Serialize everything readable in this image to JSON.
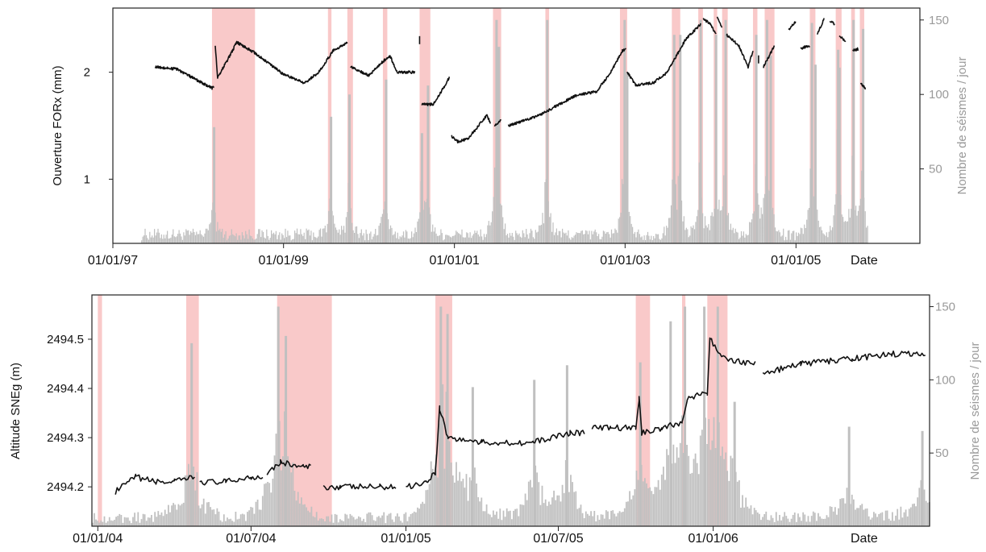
{
  "colors": {
    "event_band": "#f9c9c9",
    "bars": "#c0c0c0",
    "line": "#111111",
    "right_axis": "#9a9a9a"
  },
  "chart_data": [
    {
      "type": "line",
      "ylabel": "Ouverture FORx (mm)",
      "y2label": "Nombre de séismes / jour",
      "date_label": "Date",
      "x_tick_labels": [
        "01/01/97",
        "01/01/99",
        "01/01/01",
        "01/01/03",
        "01/01/05"
      ],
      "x_tick_values": [
        "1997-01-01",
        "1999-01-01",
        "2001-01-01",
        "2003-01-01",
        "2005-01-01"
      ],
      "xlim": [
        "1997-01-01",
        "2006-06-15"
      ],
      "y_ticks": [
        1,
        2
      ],
      "ylim": [
        0.4,
        2.6
      ],
      "y2_ticks": [
        50,
        100,
        150
      ],
      "y2lim": [
        0,
        158
      ],
      "event_bands": [
        [
          "1998-03-01",
          "1998-09-01"
        ],
        [
          "1999-07-10",
          "1999-07-25"
        ],
        [
          "1999-10-01",
          "1999-10-25"
        ],
        [
          "2000-03-01",
          "2000-03-20"
        ],
        [
          "2000-08-05",
          "2000-09-20"
        ],
        [
          "2001-06-15",
          "2001-07-20"
        ],
        [
          "2002-01-25",
          "2002-02-10"
        ],
        [
          "2002-12-10",
          "2003-01-10"
        ],
        [
          "2003-07-20",
          "2003-08-25"
        ],
        [
          "2003-11-10",
          "2003-11-30"
        ],
        [
          "2004-01-15",
          "2004-01-30"
        ],
        [
          "2004-02-20",
          "2004-03-15"
        ],
        [
          "2004-07-01",
          "2004-07-20"
        ],
        [
          "2004-08-20",
          "2004-10-01"
        ],
        [
          "2005-03-01",
          "2005-03-25"
        ],
        [
          "2005-06-20",
          "2005-07-15"
        ],
        [
          "2005-08-25",
          "2005-09-10"
        ],
        [
          "2005-10-01",
          "2005-10-20"
        ]
      ],
      "series": [
        {
          "kind": "line",
          "segments": [
            [
              [
                "1997-07-01",
                2.05
              ],
              [
                "1997-10-01",
                2.03
              ],
              [
                "1998-01-01",
                1.92
              ],
              [
                "1998-03-01",
                1.85
              ],
              [
                "1998-03-10",
                1.87
              ]
            ],
            [
              [
                "1998-03-15",
                2.25
              ],
              [
                "1998-03-25",
                1.95
              ],
              [
                "1998-05-15",
                2.15
              ],
              [
                "1998-06-15",
                2.28
              ],
              [
                "1998-09-01",
                2.18
              ],
              [
                "1999-01-01",
                1.98
              ],
              [
                "1999-04-01",
                1.9
              ],
              [
                "1999-06-01",
                2.0
              ],
              [
                "1999-08-01",
                2.2
              ],
              [
                "1999-10-01",
                2.28
              ]
            ],
            [
              [
                "1999-10-15",
                2.05
              ],
              [
                "2000-01-01",
                1.97
              ],
              [
                "2000-03-01",
                2.1
              ],
              [
                "2000-04-01",
                2.15
              ],
              [
                "2000-05-01",
                2.0
              ],
              [
                "2000-07-15",
                2.0
              ]
            ],
            [
              [
                "2000-08-05",
                2.3
              ]
            ],
            [
              [
                "2000-08-15",
                1.7
              ],
              [
                "2000-10-01",
                1.7
              ],
              [
                "2000-11-01",
                1.8
              ],
              [
                "2000-12-10",
                1.95
              ]
            ],
            [
              [
                "2000-12-20",
                1.4
              ],
              [
                "2001-01-15",
                1.35
              ],
              [
                "2001-03-01",
                1.38
              ],
              [
                "2001-05-20",
                1.6
              ],
              [
                "2001-06-05",
                1.52
              ]
            ],
            [
              [
                "2001-06-20",
                1.5
              ],
              [
                "2001-07-20",
                1.55
              ]
            ],
            [
              [
                "2001-08-20",
                1.5
              ],
              [
                "2002-01-01",
                1.6
              ],
              [
                "2002-06-01",
                1.78
              ],
              [
                "2002-09-01",
                1.82
              ],
              [
                "2002-11-01",
                2.0
              ],
              [
                "2002-12-20",
                2.2
              ],
              [
                "2003-01-05",
                2.22
              ]
            ],
            [
              [
                "2003-01-10",
                2.0
              ],
              [
                "2003-02-15",
                1.88
              ],
              [
                "2003-05-01",
                1.9
              ],
              [
                "2003-07-01",
                2.0
              ],
              [
                "2003-09-15",
                2.3
              ],
              [
                "2003-11-20",
                2.45
              ]
            ],
            [
              [
                "2003-12-01",
                2.5
              ],
              [
                "2004-01-01",
                2.45
              ],
              [
                "2004-01-25",
                2.35
              ]
            ],
            [
              [
                "2004-01-30",
                2.52
              ],
              [
                "2004-02-20",
                2.42
              ]
            ],
            [
              [
                "2004-03-10",
                2.35
              ],
              [
                "2004-05-01",
                2.25
              ],
              [
                "2004-06-10",
                2.05
              ],
              [
                "2004-07-01",
                2.2
              ]
            ],
            [
              [
                "2004-07-25",
                2.12
              ]
            ],
            [
              [
                "2004-08-15",
                2.05
              ],
              [
                "2004-10-01",
                2.25
              ]
            ],
            [
              [
                "2004-12-01",
                2.4
              ],
              [
                "2005-01-01",
                2.48
              ]
            ],
            [
              [
                "2005-01-20",
                2.22
              ],
              [
                "2005-03-01",
                2.25
              ]
            ],
            [
              [
                "2005-04-01",
                2.35
              ],
              [
                "2005-05-01",
                2.5
              ]
            ],
            [
              [
                "2005-05-25",
                2.48
              ],
              [
                "2005-06-15",
                2.45
              ]
            ],
            [
              [
                "2005-07-05",
                2.35
              ],
              [
                "2005-08-01",
                2.28
              ]
            ],
            [
              [
                "2005-09-01",
                2.2
              ],
              [
                "2005-09-25",
                2.22
              ]
            ],
            [
              [
                "2005-10-05",
                1.9
              ],
              [
                "2005-10-25",
                1.85
              ]
            ]
          ]
        },
        {
          "kind": "bars",
          "spikes": [
            [
              "1998-03-05",
              78
            ],
            [
              "1999-07-18",
              85
            ],
            [
              "1999-10-05",
              100
            ],
            [
              "2000-03-10",
              110
            ],
            [
              "2000-08-10",
              74
            ],
            [
              "2000-09-05",
              106
            ],
            [
              "2001-06-25",
              150
            ],
            [
              "2001-07-05",
              132
            ],
            [
              "2002-01-28",
              150
            ],
            [
              "2002-12-25",
              150
            ],
            [
              "2003-01-05",
              115
            ],
            [
              "2003-07-25",
              140
            ],
            [
              "2003-08-20",
              140
            ],
            [
              "2003-11-15",
              150
            ],
            [
              "2004-01-20",
              140
            ],
            [
              "2004-03-01",
              150
            ],
            [
              "2004-07-10",
              140
            ],
            [
              "2004-08-25",
              150
            ],
            [
              "2004-09-10",
              126
            ],
            [
              "2005-03-05",
              148
            ],
            [
              "2005-06-25",
              130
            ],
            [
              "2005-08-30",
              150
            ],
            [
              "2005-10-10",
              144
            ],
            [
              "2005-07-01",
              118
            ],
            [
              "2005-03-20",
              120
            ]
          ]
        }
      ]
    },
    {
      "type": "line",
      "ylabel": "Altitude SNEg (m)",
      "y2label": "Nombre de séismes / jour",
      "date_label": "Date",
      "x_tick_labels": [
        "01/01/04",
        "01/07/04",
        "01/01/05",
        "01/07/05",
        "01/01/06"
      ],
      "x_tick_values": [
        "2004-01-01",
        "2004-07-01",
        "2005-01-01",
        "2005-07-01",
        "2006-01-01"
      ],
      "xlim": [
        "2003-12-25",
        "2006-09-15"
      ],
      "y_ticks": [
        2494.2,
        2494.3,
        2494.4,
        2494.5
      ],
      "ylim": [
        2494.12,
        2494.59
      ],
      "y2_ticks": [
        50,
        100,
        150
      ],
      "y2lim": [
        0,
        158
      ],
      "event_bands": [
        [
          "2004-01-01",
          "2004-01-06"
        ],
        [
          "2004-04-15",
          "2004-04-30"
        ],
        [
          "2004-08-01",
          "2004-10-05"
        ],
        [
          "2005-02-05",
          "2005-02-25"
        ],
        [
          "2005-10-01",
          "2005-10-18"
        ],
        [
          "2005-11-25",
          "2005-11-29"
        ],
        [
          "2005-12-25",
          "2006-01-18"
        ]
      ],
      "series": [
        {
          "kind": "line",
          "segments": [
            [
              [
                "2004-01-22",
                2494.19
              ],
              [
                "2004-02-15",
                2494.22
              ],
              [
                "2004-03-10",
                2494.21
              ],
              [
                "2004-04-01",
                2494.21
              ],
              [
                "2004-04-25",
                2494.22
              ]
            ],
            [
              [
                "2004-05-01",
                2494.21
              ],
              [
                "2004-06-01",
                2494.21
              ],
              [
                "2004-07-01",
                2494.22
              ],
              [
                "2004-07-15",
                2494.22
              ]
            ],
            [
              [
                "2004-07-20",
                2494.23
              ],
              [
                "2004-08-05",
                2494.25
              ],
              [
                "2004-09-01",
                2494.24
              ],
              [
                "2004-09-10",
                2494.24
              ]
            ],
            [
              [
                "2004-09-25",
                2494.2
              ],
              [
                "2004-10-15",
                2494.2
              ],
              [
                "2004-12-01",
                2494.2
              ],
              [
                "2004-12-20",
                2494.2
              ]
            ],
            [
              [
                "2005-01-01",
                2494.2
              ],
              [
                "2005-01-25",
                2494.21
              ],
              [
                "2005-02-05",
                2494.23
              ],
              [
                "2005-02-10",
                2494.36
              ],
              [
                "2005-02-20",
                2494.3
              ],
              [
                "2005-04-01",
                2494.29
              ],
              [
                "2005-06-01",
                2494.29
              ],
              [
                "2005-07-15",
                2494.31
              ],
              [
                "2005-08-01",
                2494.31
              ]
            ],
            [
              [
                "2005-08-10",
                2494.32
              ],
              [
                "2005-09-01",
                2494.32
              ],
              [
                "2005-10-01",
                2494.32
              ],
              [
                "2005-10-05",
                2494.38
              ],
              [
                "2005-10-08",
                2494.31
              ],
              [
                "2005-11-01",
                2494.32
              ],
              [
                "2005-11-25",
                2494.33
              ],
              [
                "2005-12-01",
                2494.38
              ],
              [
                "2005-12-25",
                2494.39
              ],
              [
                "2005-12-28",
                2494.5
              ],
              [
                "2006-01-15",
                2494.46
              ],
              [
                "2006-02-20",
                2494.45
              ]
            ],
            [
              [
                "2006-03-01",
                2494.43
              ],
              [
                "2006-04-15",
                2494.45
              ],
              [
                "2006-06-15",
                2494.46
              ],
              [
                "2006-08-01",
                2494.47
              ],
              [
                "2006-09-10",
                2494.47
              ]
            ]
          ]
        },
        {
          "kind": "bars",
          "spikes": [
            [
              "2004-04-20",
              125
            ],
            [
              "2004-08-01",
              150
            ],
            [
              "2004-08-10",
              130
            ],
            [
              "2005-02-10",
              150
            ],
            [
              "2005-02-18",
              145
            ],
            [
              "2005-03-20",
              95
            ],
            [
              "2005-06-01",
              100
            ],
            [
              "2005-07-10",
              110
            ],
            [
              "2005-10-05",
              112
            ],
            [
              "2005-11-10",
              140
            ],
            [
              "2005-11-27",
              150
            ],
            [
              "2005-12-20",
              150
            ],
            [
              "2006-01-05",
              150
            ],
            [
              "2006-01-25",
              85
            ],
            [
              "2006-06-10",
              68
            ],
            [
              "2006-09-05",
              65
            ]
          ]
        }
      ]
    }
  ]
}
